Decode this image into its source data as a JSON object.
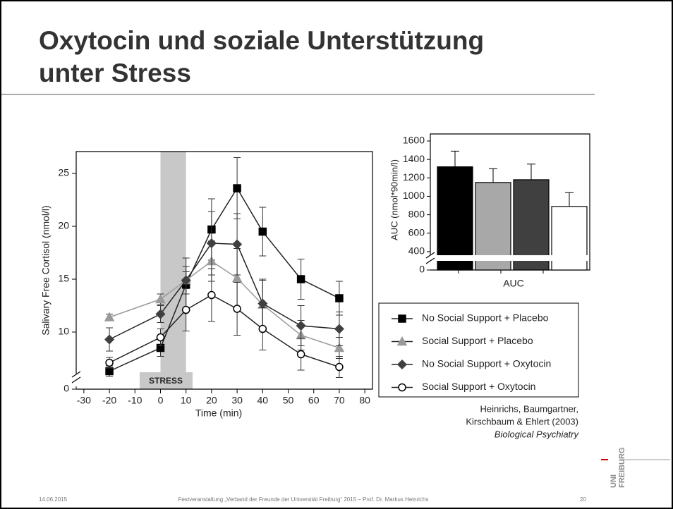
{
  "title_lines": [
    "Oxytocin und soziale Unterstützung",
    "unter Stress"
  ],
  "chart_data": [
    {
      "type": "line",
      "xlabel": "Time (min)",
      "ylabel": "Salivary Free Cortisol (nmol/l)",
      "x": [
        -20,
        0,
        10,
        20,
        30,
        40,
        55,
        70
      ],
      "xlim": [
        -33,
        83
      ],
      "xticks": [
        -30,
        -20,
        -10,
        0,
        10,
        20,
        30,
        40,
        50,
        60,
        70,
        80
      ],
      "ylim": [
        0,
        27.07
      ],
      "yticks": [
        0,
        10,
        15,
        20,
        25
      ],
      "ybreak": 5,
      "shaded": {
        "x": [
          0,
          10
        ],
        "label": "STRESS"
      },
      "series": [
        {
          "name": "No Social Support + Placebo",
          "color": "#000000",
          "marker": "square",
          "fill": "#000000",
          "values": [
            6.3,
            8.5,
            14.5,
            19.7,
            23.6,
            19.5,
            15.0,
            13.2
          ],
          "errors": [
            0.5,
            0.8,
            2.5,
            2.9,
            2.9,
            2.3,
            1.9,
            1.6
          ]
        },
        {
          "name": "Social Support + Placebo",
          "color": "#9a9a9a",
          "marker": "triangle",
          "fill": "#9a9a9a",
          "values": [
            11.4,
            13.1,
            14.9,
            16.7,
            15.1,
            12.6,
            9.7,
            8.5
          ],
          "errors": [
            0.3,
            0.5,
            0.8,
            1.9,
            2.8,
            2.3,
            1.4,
            1.0
          ]
        },
        {
          "name": "No Social Support + Oxytocin",
          "color": "#404040",
          "marker": "diamond",
          "fill": "#404040",
          "values": [
            9.3,
            11.7,
            14.9,
            18.4,
            18.3,
            12.7,
            10.6,
            10.3
          ],
          "errors": [
            1.1,
            0.8,
            1.3,
            3.0,
            2.9,
            2.3,
            1.9,
            1.6
          ]
        },
        {
          "name": "Social Support + Oxytocin",
          "color": "#000000",
          "marker": "circle",
          "fill": "#ffffff",
          "values": [
            7.1,
            9.5,
            12.1,
            13.5,
            12.2,
            10.3,
            7.9,
            6.7
          ],
          "errors": [
            0.5,
            0.8,
            2.0,
            2.5,
            2.5,
            2.0,
            1.5,
            1.0
          ]
        }
      ]
    },
    {
      "type": "bar",
      "ylabel": "AUC (nmol*90min/l)",
      "categories": [
        "AUC"
      ],
      "ylim": [
        0,
        1600
      ],
      "yticks": [
        0,
        400,
        600,
        800,
        1000,
        1200,
        1400,
        1600
      ],
      "ybreak": 300,
      "series": [
        {
          "color": "#000000",
          "values": [
            1320
          ],
          "errors": [
            170
          ]
        },
        {
          "color": "#a8a8a8",
          "values": [
            1150
          ],
          "errors": [
            150
          ]
        },
        {
          "color": "#404040",
          "values": [
            1180
          ],
          "errors": [
            170
          ]
        },
        {
          "color": "#ffffff",
          "values": [
            890
          ],
          "errors": [
            150
          ]
        }
      ]
    }
  ],
  "citation": [
    "Heinrichs, Baumgartner,",
    "Kirschbaum & Ehlert (2003)",
    "Biological Psychiatry"
  ],
  "footer": {
    "date": "14.06.2015",
    "event": "Festveranstaltung „Verband der Freunde der Universität Freiburg“ 2015  –  Prof. Dr. Markus Heinrichs",
    "page": "20"
  },
  "logo": [
    "UNI",
    "FREIBURG"
  ]
}
